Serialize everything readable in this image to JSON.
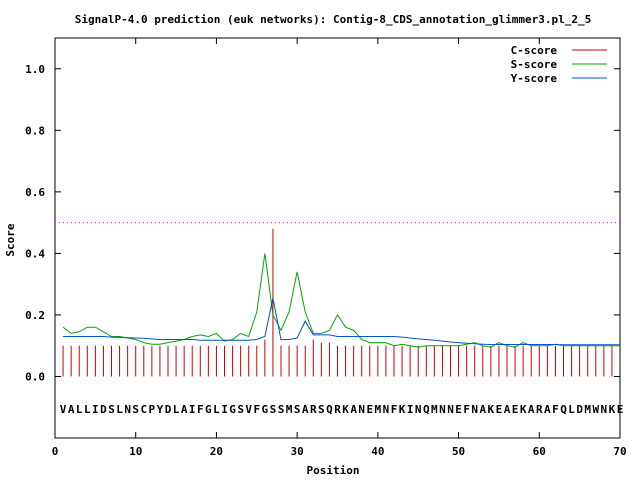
{
  "chart_data": {
    "type": "line",
    "title": "SignalP-4.0 prediction (euk networks): Contig-8_CDS_annotation_glimmer3.pl_2_5",
    "xlabel": "Position",
    "ylabel": "Score",
    "xlim": [
      0,
      70
    ],
    "ylim": [
      -0.2,
      1.1
    ],
    "xticks": [
      0,
      10,
      20,
      30,
      40,
      50,
      60,
      70
    ],
    "yticks": [
      0.0,
      0.2,
      0.4,
      0.6,
      0.8,
      1.0
    ],
    "xtick_labels": [
      "0",
      "10",
      "20",
      "30",
      "40",
      "50",
      "60",
      "70"
    ],
    "ytick_labels": [
      "0.0",
      "0.2",
      "0.4",
      "0.6",
      "0.8",
      "1.0"
    ],
    "legend_position": "top-right",
    "threshold": {
      "value": 0.5,
      "color": "#ff00ff"
    },
    "sequence": "VALLIDSLNSCPYDLAIFGLIGSVFGSSMSARSQRKANEMNFKINQMNNEFNAKEAEKARAFQLDMWNKE",
    "series": [
      {
        "name": "C-score",
        "color": "#cc0000",
        "style": "impulses",
        "x": [
          1,
          2,
          3,
          4,
          5,
          6,
          7,
          8,
          9,
          10,
          11,
          12,
          13,
          14,
          15,
          16,
          17,
          18,
          19,
          20,
          21,
          22,
          23,
          24,
          25,
          26,
          27,
          28,
          29,
          30,
          31,
          32,
          33,
          34,
          35,
          36,
          37,
          38,
          39,
          40,
          41,
          42,
          43,
          44,
          45,
          46,
          47,
          48,
          49,
          50,
          51,
          52,
          53,
          54,
          55,
          56,
          57,
          58,
          59,
          60,
          61,
          62,
          63,
          64,
          65,
          66,
          67,
          68,
          69
        ],
        "values": [
          0.1,
          0.1,
          0.1,
          0.1,
          0.1,
          0.1,
          0.1,
          0.1,
          0.1,
          0.1,
          0.1,
          0.1,
          0.1,
          0.1,
          0.1,
          0.1,
          0.1,
          0.1,
          0.1,
          0.1,
          0.1,
          0.1,
          0.1,
          0.1,
          0.1,
          0.12,
          0.48,
          0.1,
          0.1,
          0.1,
          0.1,
          0.12,
          0.11,
          0.11,
          0.1,
          0.1,
          0.1,
          0.1,
          0.1,
          0.1,
          0.1,
          0.1,
          0.1,
          0.1,
          0.1,
          0.1,
          0.1,
          0.1,
          0.1,
          0.1,
          0.1,
          0.1,
          0.1,
          0.1,
          0.1,
          0.1,
          0.1,
          0.1,
          0.1,
          0.1,
          0.1,
          0.1,
          0.1,
          0.1,
          0.1,
          0.1,
          0.1,
          0.1,
          0.1
        ]
      },
      {
        "name": "S-score",
        "color": "#00aa00",
        "style": "line",
        "x": [
          1,
          2,
          3,
          4,
          5,
          6,
          7,
          8,
          9,
          10,
          11,
          12,
          13,
          14,
          15,
          16,
          17,
          18,
          19,
          20,
          21,
          22,
          23,
          24,
          25,
          26,
          27,
          28,
          29,
          30,
          31,
          32,
          33,
          34,
          35,
          36,
          37,
          38,
          39,
          40,
          41,
          42,
          43,
          44,
          45,
          46,
          47,
          48,
          49,
          50,
          51,
          52,
          53,
          54,
          55,
          56,
          57,
          58,
          59,
          60,
          61,
          62,
          63,
          64,
          65,
          66,
          67,
          68,
          69,
          70
        ],
        "values": [
          0.16,
          0.14,
          0.145,
          0.16,
          0.16,
          0.145,
          0.13,
          0.13,
          0.125,
          0.12,
          0.11,
          0.105,
          0.105,
          0.11,
          0.115,
          0.12,
          0.13,
          0.135,
          0.13,
          0.14,
          0.115,
          0.12,
          0.14,
          0.13,
          0.21,
          0.4,
          0.2,
          0.15,
          0.21,
          0.34,
          0.21,
          0.14,
          0.14,
          0.15,
          0.2,
          0.16,
          0.15,
          0.12,
          0.11,
          0.11,
          0.11,
          0.1,
          0.105,
          0.1,
          0.095,
          0.1,
          0.1,
          0.1,
          0.1,
          0.1,
          0.105,
          0.11,
          0.1,
          0.095,
          0.11,
          0.1,
          0.095,
          0.11,
          0.1,
          0.1,
          0.1,
          0.105,
          0.1,
          0.1,
          0.1,
          0.1,
          0.1,
          0.1,
          0.1,
          0.1
        ]
      },
      {
        "name": "Y-score",
        "color": "#0055cc",
        "style": "line",
        "x": [
          1,
          2,
          3,
          4,
          5,
          6,
          7,
          8,
          9,
          10,
          11,
          12,
          13,
          14,
          15,
          16,
          17,
          18,
          19,
          20,
          21,
          22,
          23,
          24,
          25,
          26,
          27,
          28,
          29,
          30,
          31,
          32,
          33,
          34,
          35,
          36,
          37,
          38,
          39,
          40,
          41,
          42,
          43,
          44,
          45,
          46,
          47,
          48,
          49,
          50,
          51,
          52,
          53,
          54,
          55,
          56,
          57,
          58,
          59,
          60,
          61,
          62,
          63,
          64,
          65,
          66,
          67,
          68,
          69,
          70
        ],
        "values": [
          0.13,
          0.13,
          0.13,
          0.13,
          0.13,
          0.13,
          0.128,
          0.127,
          0.126,
          0.125,
          0.124,
          0.122,
          0.12,
          0.12,
          0.12,
          0.12,
          0.12,
          0.118,
          0.118,
          0.118,
          0.118,
          0.118,
          0.118,
          0.118,
          0.12,
          0.13,
          0.255,
          0.12,
          0.12,
          0.125,
          0.18,
          0.135,
          0.135,
          0.135,
          0.13,
          0.13,
          0.13,
          0.13,
          0.13,
          0.13,
          0.13,
          0.13,
          0.128,
          0.125,
          0.122,
          0.12,
          0.118,
          0.115,
          0.112,
          0.11,
          0.108,
          0.106,
          0.105,
          0.104,
          0.104,
          0.104,
          0.104,
          0.104,
          0.104,
          0.104,
          0.104,
          0.104,
          0.103,
          0.103,
          0.103,
          0.103,
          0.103,
          0.103,
          0.103,
          0.103
        ]
      }
    ]
  }
}
